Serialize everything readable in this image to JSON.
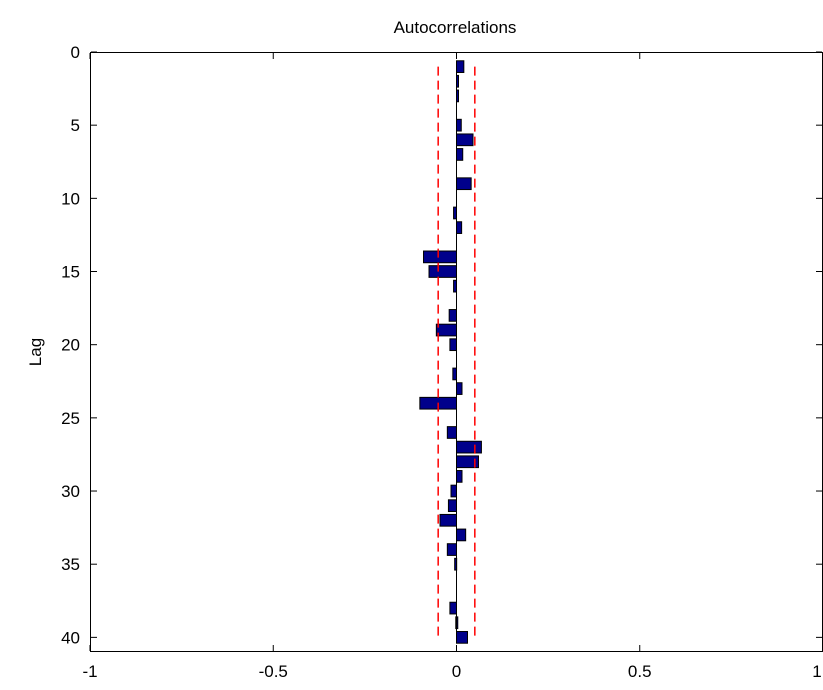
{
  "chart_data": {
    "type": "bar",
    "orientation": "horizontal",
    "title": "Autocorrelations",
    "xlabel": "",
    "ylabel": "Lag",
    "xlim": [
      -1,
      1
    ],
    "ylim": [
      0,
      41
    ],
    "y_reversed": true,
    "xticks": [
      -1,
      -0.5,
      0,
      0.5,
      1
    ],
    "xtick_labels": [
      "-1",
      "-0.5",
      "0",
      "0.5",
      "1"
    ],
    "yticks": [
      0,
      5,
      10,
      15,
      20,
      25,
      30,
      35,
      40
    ],
    "ytick_labels": [
      "0",
      "5",
      "10",
      "15",
      "20",
      "25",
      "30",
      "35",
      "40"
    ],
    "grid": false,
    "bar_color": "#00008b",
    "bar_edge_color": "#000000",
    "bound_color": "#ff0000",
    "bound_style": "dashed",
    "bounds": [
      -0.05,
      0.05
    ],
    "lags": [
      1,
      2,
      3,
      4,
      5,
      6,
      7,
      8,
      9,
      10,
      11,
      12,
      13,
      14,
      15,
      16,
      17,
      18,
      19,
      20,
      21,
      22,
      23,
      24,
      25,
      26,
      27,
      28,
      29,
      30,
      31,
      32,
      33,
      34,
      35,
      36,
      37,
      38,
      39,
      40
    ],
    "values": [
      0.02,
      0.004,
      0.002,
      0.0,
      0.013,
      0.045,
      0.017,
      0.0,
      0.04,
      0.0,
      -0.008,
      0.014,
      0.0,
      -0.09,
      -0.075,
      -0.008,
      0.0,
      -0.02,
      -0.055,
      -0.018,
      0.0,
      -0.01,
      0.015,
      -0.1,
      0.0,
      -0.025,
      0.068,
      0.06,
      0.015,
      -0.015,
      -0.022,
      -0.045,
      0.025,
      -0.025,
      -0.005,
      0.0,
      0.0,
      -0.018,
      -0.002,
      0.03
    ]
  }
}
